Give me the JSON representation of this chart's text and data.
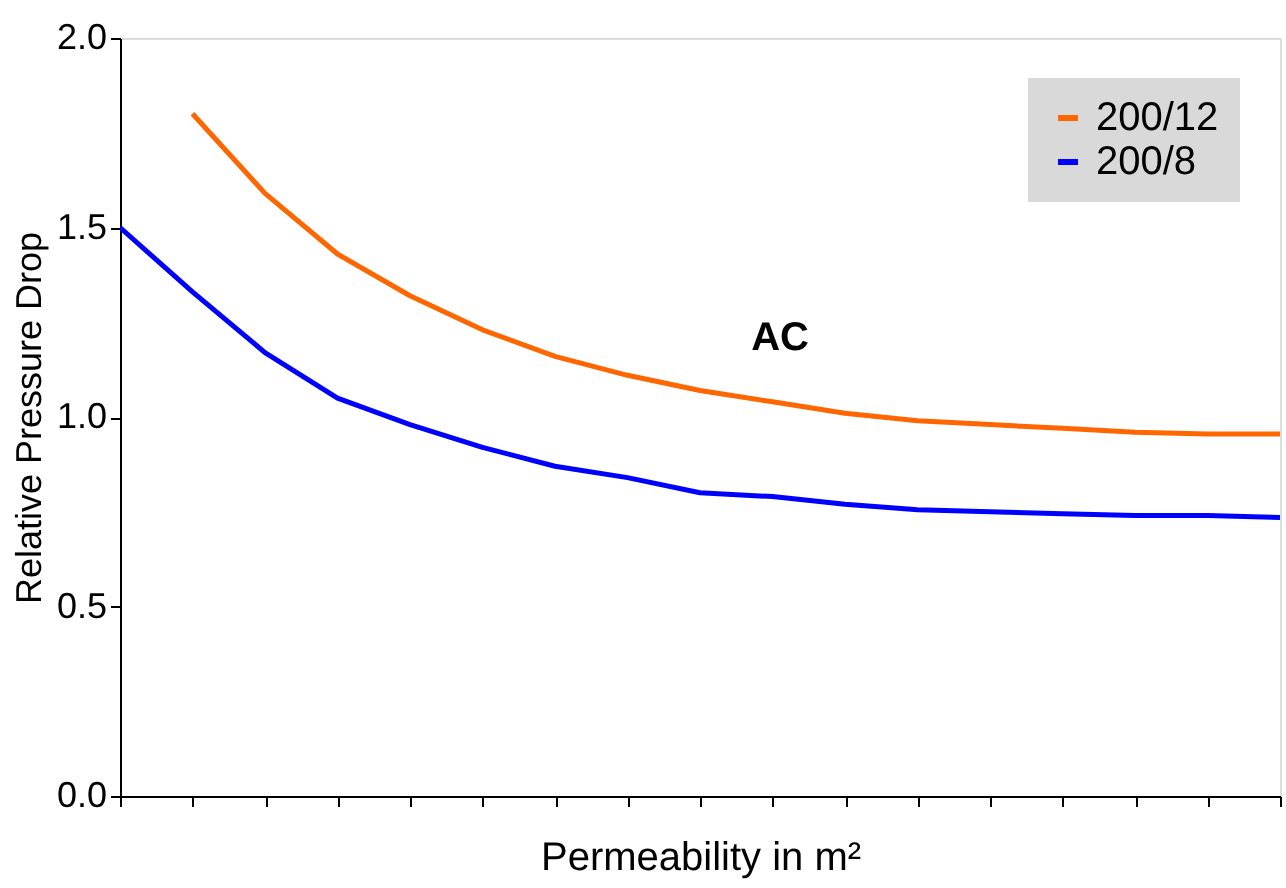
{
  "chart_data": {
    "type": "line",
    "xlabel": "Permeability in m²",
    "ylabel": "Relative Pressure Drop",
    "categories": [
      null,
      null,
      null,
      null,
      null,
      null,
      null,
      null,
      null,
      null,
      null,
      null,
      null,
      null,
      null,
      null,
      null
    ],
    "series": [
      {
        "name": "200/12",
        "color": "#ff6600",
        "values": [
          null,
          1.8,
          1.59,
          1.43,
          1.32,
          1.23,
          1.16,
          1.11,
          1.07,
          1.04,
          1.01,
          0.99,
          0.98,
          0.97,
          0.96,
          0.955,
          0.955
        ]
      },
      {
        "name": "200/8",
        "color": "#0000ff",
        "values": [
          1.5,
          1.33,
          1.17,
          1.05,
          0.98,
          0.92,
          0.87,
          0.84,
          0.8,
          0.79,
          0.77,
          0.755,
          0.75,
          0.745,
          0.74,
          0.74,
          0.735
        ]
      }
    ],
    "ylim": [
      0,
      2
    ],
    "yticks": [
      {
        "value": 0,
        "label": "0.0"
      },
      {
        "value": 0.5,
        "label": "0.5"
      },
      {
        "value": 1,
        "label": "1.0"
      },
      {
        "value": 1.5,
        "label": "1.5"
      },
      {
        "value": 2,
        "label": "2.0"
      }
    ],
    "tick_labels": "y",
    "grid": false,
    "legend": "top right",
    "line_style": "solid",
    "marker": "none",
    "annotations": [
      "AC"
    ]
  }
}
